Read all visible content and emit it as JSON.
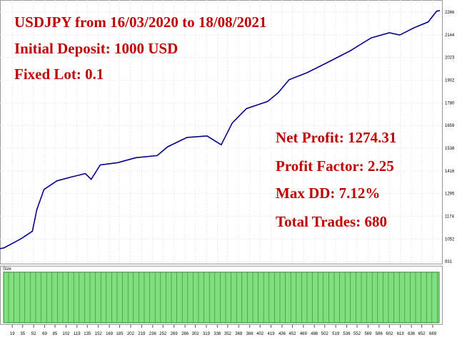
{
  "chart_data": {
    "type": "line",
    "title": "USDJPY from 16/03/2020 to 18/08/2021",
    "annotations": [
      "Initial Deposit: 1000 USD",
      "Fixed Lot: 0.1",
      "Net Profit: 1274.31",
      "Profit Factor: 2.25",
      "Max DD: 7.12%",
      "Total Trades: 680"
    ],
    "size_label": "Size",
    "color": "#00008b",
    "x": [
      0,
      6,
      17,
      33,
      50,
      57,
      68,
      88,
      110,
      132,
      141,
      155,
      182,
      210,
      243,
      259,
      289,
      320,
      342,
      359,
      381,
      414,
      430,
      447,
      475,
      502,
      541,
      574,
      602,
      618,
      640,
      662,
      675,
      680
    ],
    "values": [
      1000,
      1004,
      1024,
      1054,
      1093,
      1209,
      1317,
      1363,
      1383,
      1402,
      1371,
      1448,
      1460,
      1487,
      1498,
      1545,
      1595,
      1603,
      1556,
      1672,
      1749,
      1788,
      1834,
      1904,
      1942,
      1989,
      2058,
      2128,
      2155,
      2143,
      2182,
      2213,
      2271,
      2274
    ],
    "xlim": [
      0,
      680
    ],
    "xticks": [
      19,
      35,
      52,
      69,
      85,
      102,
      119,
      135,
      152,
      169,
      185,
      202,
      219,
      236,
      252,
      269,
      286,
      302,
      319,
      336,
      352,
      369,
      386,
      402,
      419,
      436,
      452,
      469,
      486,
      502,
      519,
      536,
      552,
      569,
      586,
      602,
      619,
      636,
      652,
      669
    ],
    "ylim": [
      920,
      2300
    ],
    "yticks": [
      931,
      1052,
      1174,
      1295,
      1416,
      1538,
      1659,
      1780,
      1902,
      2023,
      2144,
      2266
    ],
    "grid": true
  }
}
